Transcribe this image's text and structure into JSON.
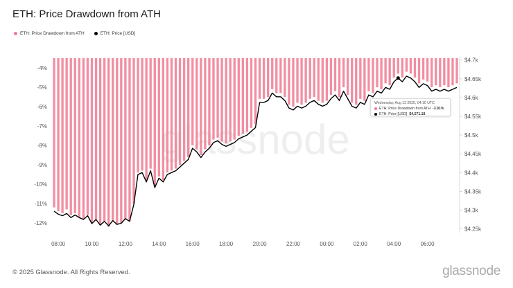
{
  "header": {
    "title": "ETH: Price Drawdown from ATH"
  },
  "legend": [
    {
      "label": "ETH: Price Drawdown from ATH",
      "color": "#f07a92"
    },
    {
      "label": "ETH: Price [USD]",
      "color": "#000000"
    }
  ],
  "tooltip": {
    "date": "Wednesday, Aug 13 2025, 04:10 UTC",
    "row1_label": "ETH: Price Drawdown from ATH",
    "row1_value": "-3.91%",
    "row2_label": "ETH: Price [USD]",
    "row2_value": "$4,571.18"
  },
  "footer": {
    "copyright": "© 2025 Glassnode. All Rights Reserved.",
    "logo": "glassnode"
  },
  "watermark": "glassnode",
  "chart_data": {
    "type": "bar",
    "title": "ETH: Price Drawdown from ATH",
    "x_ticks": [
      "08:00",
      "10:00",
      "12:00",
      "14:00",
      "16:00",
      "18:00",
      "20:00",
      "22:00",
      "00:00",
      "02:00",
      "04:00",
      "06:00"
    ],
    "left_axis": {
      "ticks": [
        "-4%",
        "-5%",
        "-6%",
        "-7%",
        "-8%",
        "-9%",
        "-10%",
        "-11%",
        "-12%"
      ],
      "ylim": [
        -12.5,
        -3.5
      ]
    },
    "right_axis": {
      "ticks": [
        "$4.7k",
        "$4.65k",
        "$4.6k",
        "$4.55k",
        "$4.5k",
        "$4.45k",
        "$4.4k",
        "$4.35k",
        "$4.3k",
        "$4.25k"
      ],
      "ylim": [
        4240,
        4705
      ]
    },
    "bar_color": "#f07a92",
    "line_color": "#000000",
    "series": [
      {
        "name": "ETH: Price Drawdown from ATH",
        "kind": "bar",
        "points": [
          [
            7.75,
            -11.2
          ],
          [
            8.0,
            -11.4
          ],
          [
            8.25,
            -11.5
          ],
          [
            8.5,
            -11.3
          ],
          [
            8.75,
            -11.6
          ],
          [
            9.0,
            -11.5
          ],
          [
            9.25,
            -11.7
          ],
          [
            9.5,
            -11.8
          ],
          [
            9.75,
            -11.6
          ],
          [
            10.0,
            -12.0
          ],
          [
            10.25,
            -11.8
          ],
          [
            10.5,
            -12.1
          ],
          [
            10.75,
            -11.9
          ],
          [
            11.0,
            -12.2
          ],
          [
            11.25,
            -11.9
          ],
          [
            11.5,
            -12.1
          ],
          [
            11.75,
            -12.0
          ],
          [
            12.0,
            -11.8
          ],
          [
            12.25,
            -11.9
          ],
          [
            12.5,
            -11.0
          ],
          [
            12.75,
            -9.4
          ],
          [
            13.0,
            -9.3
          ],
          [
            13.25,
            -9.8
          ],
          [
            13.5,
            -9.2
          ],
          [
            13.75,
            -10.1
          ],
          [
            14.0,
            -9.6
          ],
          [
            14.25,
            -9.8
          ],
          [
            14.5,
            -9.4
          ],
          [
            14.75,
            -9.3
          ],
          [
            15.0,
            -9.2
          ],
          [
            15.25,
            -9.0
          ],
          [
            15.5,
            -8.8
          ],
          [
            15.75,
            -8.6
          ],
          [
            16.0,
            -8.0
          ],
          [
            16.25,
            -8.2
          ],
          [
            16.5,
            -8.5
          ],
          [
            16.75,
            -8.2
          ],
          [
            17.0,
            -8.0
          ],
          [
            17.25,
            -7.7
          ],
          [
            17.5,
            -7.6
          ],
          [
            17.75,
            -7.8
          ],
          [
            18.0,
            -7.9
          ],
          [
            18.25,
            -7.8
          ],
          [
            18.5,
            -7.7
          ],
          [
            18.75,
            -7.5
          ],
          [
            19.0,
            -7.4
          ],
          [
            19.25,
            -7.3
          ],
          [
            19.5,
            -7.1
          ],
          [
            19.75,
            -6.9
          ],
          [
            20.0,
            -5.6
          ],
          [
            20.25,
            -5.6
          ],
          [
            20.5,
            -5.5
          ],
          [
            20.75,
            -5.1
          ],
          [
            21.0,
            -5.3
          ],
          [
            21.25,
            -5.3
          ],
          [
            21.5,
            -5.5
          ],
          [
            21.75,
            -5.9
          ],
          [
            22.0,
            -6.0
          ],
          [
            22.25,
            -5.8
          ],
          [
            22.5,
            -5.9
          ],
          [
            22.75,
            -5.8
          ],
          [
            23.0,
            -5.6
          ],
          [
            23.25,
            -5.5
          ],
          [
            23.5,
            -5.7
          ],
          [
            23.75,
            -5.8
          ],
          [
            24.0,
            -5.7
          ],
          [
            24.25,
            -5.4
          ],
          [
            24.5,
            -5.2
          ],
          [
            24.75,
            -5.5
          ],
          [
            25.0,
            -5.0
          ],
          [
            25.25,
            -5.4
          ],
          [
            25.5,
            -5.8
          ],
          [
            25.75,
            -5.9
          ],
          [
            26.0,
            -5.6
          ],
          [
            26.25,
            -5.7
          ],
          [
            26.5,
            -5.2
          ],
          [
            26.75,
            -5.3
          ],
          [
            27.0,
            -5.0
          ],
          [
            27.25,
            -5.1
          ],
          [
            27.5,
            -4.8
          ],
          [
            27.75,
            -4.9
          ],
          [
            28.0,
            -4.5
          ],
          [
            28.25,
            -4.3
          ],
          [
            28.5,
            -4.5
          ],
          [
            28.75,
            -4.2
          ],
          [
            29.0,
            -4.3
          ],
          [
            29.25,
            -4.5
          ],
          [
            29.5,
            -4.8
          ],
          [
            29.75,
            -4.6
          ],
          [
            30.0,
            -4.7
          ],
          [
            30.25,
            -5.0
          ],
          [
            30.5,
            -4.9
          ],
          [
            30.75,
            -5.0
          ],
          [
            31.0,
            -4.9
          ],
          [
            31.25,
            -5.0
          ],
          [
            31.5,
            -4.9
          ],
          [
            31.75,
            -4.8
          ]
        ]
      },
      {
        "name": "ETH: Price [USD]",
        "kind": "line",
        "points": [
          [
            7.75,
            4297
          ],
          [
            8.0,
            4289
          ],
          [
            8.25,
            4285
          ],
          [
            8.5,
            4291
          ],
          [
            8.75,
            4280
          ],
          [
            9.0,
            4287
          ],
          [
            9.25,
            4280
          ],
          [
            9.5,
            4275
          ],
          [
            9.75,
            4285
          ],
          [
            10.0,
            4264
          ],
          [
            10.25,
            4275
          ],
          [
            10.5,
            4260
          ],
          [
            10.75,
            4270
          ],
          [
            11.0,
            4258
          ],
          [
            11.25,
            4272
          ],
          [
            11.5,
            4262
          ],
          [
            11.75,
            4265
          ],
          [
            12.0,
            4277
          ],
          [
            12.25,
            4270
          ],
          [
            12.5,
            4315
          ],
          [
            12.75,
            4395
          ],
          [
            13.0,
            4400
          ],
          [
            13.25,
            4375
          ],
          [
            13.5,
            4405
          ],
          [
            13.75,
            4360
          ],
          [
            14.0,
            4385
          ],
          [
            14.25,
            4375
          ],
          [
            14.5,
            4395
          ],
          [
            14.75,
            4400
          ],
          [
            15.0,
            4405
          ],
          [
            15.25,
            4415
          ],
          [
            15.5,
            4425
          ],
          [
            15.75,
            4435
          ],
          [
            16.0,
            4465
          ],
          [
            16.25,
            4455
          ],
          [
            16.5,
            4440
          ],
          [
            16.75,
            4455
          ],
          [
            17.0,
            4465
          ],
          [
            17.25,
            4480
          ],
          [
            17.5,
            4485
          ],
          [
            17.75,
            4475
          ],
          [
            18.0,
            4470
          ],
          [
            18.25,
            4475
          ],
          [
            18.5,
            4480
          ],
          [
            18.75,
            4490
          ],
          [
            19.0,
            4495
          ],
          [
            19.25,
            4500
          ],
          [
            19.5,
            4510
          ],
          [
            19.75,
            4520
          ],
          [
            20.0,
            4587
          ],
          [
            20.25,
            4587
          ],
          [
            20.5,
            4592
          ],
          [
            20.75,
            4612
          ],
          [
            21.0,
            4602
          ],
          [
            21.25,
            4602
          ],
          [
            21.5,
            4592
          ],
          [
            21.75,
            4572
          ],
          [
            22.0,
            4567
          ],
          [
            22.25,
            4577
          ],
          [
            22.5,
            4572
          ],
          [
            22.75,
            4577
          ],
          [
            23.0,
            4587
          ],
          [
            23.25,
            4592
          ],
          [
            23.5,
            4582
          ],
          [
            23.75,
            4577
          ],
          [
            24.0,
            4582
          ],
          [
            24.25,
            4597
          ],
          [
            24.5,
            4607
          ],
          [
            24.75,
            4592
          ],
          [
            25.0,
            4617
          ],
          [
            25.25,
            4597
          ],
          [
            25.5,
            4577
          ],
          [
            25.75,
            4572
          ],
          [
            26.0,
            4587
          ],
          [
            26.25,
            4582
          ],
          [
            26.5,
            4607
          ],
          [
            26.75,
            4602
          ],
          [
            27.0,
            4617
          ],
          [
            27.25,
            4612
          ],
          [
            27.5,
            4627
          ],
          [
            27.75,
            4622
          ],
          [
            28.0,
            4642
          ],
          [
            28.25,
            4652
          ],
          [
            28.5,
            4642
          ],
          [
            28.75,
            4657
          ],
          [
            29.0,
            4652
          ],
          [
            29.25,
            4642
          ],
          [
            29.5,
            4627
          ],
          [
            29.75,
            4637
          ],
          [
            30.0,
            4632
          ],
          [
            30.25,
            4617
          ],
          [
            30.5,
            4622
          ],
          [
            30.75,
            4617
          ],
          [
            31.0,
            4622
          ],
          [
            31.25,
            4617
          ],
          [
            31.5,
            4622
          ],
          [
            31.75,
            4627
          ]
        ]
      }
    ],
    "grid": false,
    "legend_position": "top-left"
  }
}
